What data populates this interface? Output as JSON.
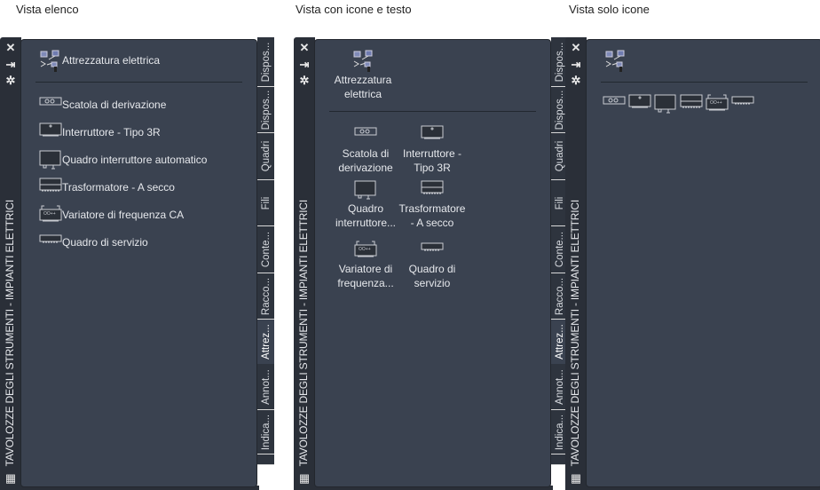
{
  "captions": [
    "Vista elenco",
    "Vista con icone e testo",
    "Vista solo icone"
  ],
  "palette_title": "TAVOLOZZE DEGLI STRUMENTI - IMPIANTI ELETTRICI",
  "controls": {
    "close": "close-icon",
    "autohide": "autohide-icon",
    "properties": "properties-icon",
    "bottom": "palette-menu-icon"
  },
  "tabs": [
    {
      "label": "Dispos..."
    },
    {
      "label": "Dispos..."
    },
    {
      "label": "Quadri"
    },
    {
      "label": "Fili"
    },
    {
      "label": "Conte..."
    },
    {
      "label": "Racco..."
    },
    {
      "label": "Attrez...",
      "active": true
    },
    {
      "label": "Annot..."
    },
    {
      "label": "Indica..."
    }
  ],
  "header": {
    "label": "Attrezzatura elettrica",
    "icon": "electrical-equipment-icon"
  },
  "items": [
    {
      "label": "Scatola di derivazione",
      "grid_label": "Scatola di derivazione",
      "icon": "junction-box-icon"
    },
    {
      "label": "Interruttore - Tipo 3R",
      "grid_label": "Interruttore - Tipo 3R",
      "icon": "switch-icon"
    },
    {
      "label": "Quadro interruttore automatico",
      "grid_label": "Quadro interruttore...",
      "icon": "breaker-panel-icon"
    },
    {
      "label": "Trasformatore - A secco",
      "grid_label": "Trasformatore - A secco",
      "icon": "transformer-icon"
    },
    {
      "label": "Variatore di frequenza CA",
      "grid_label": "Variatore di frequenza...",
      "icon": "vfd-icon"
    },
    {
      "label": "Quadro di servizio",
      "grid_label": "Quadro di servizio",
      "icon": "service-panel-icon"
    }
  ],
  "colors": {
    "content": "#3a4250",
    "bar": "#2a2f38",
    "text": "#e6e8ec"
  }
}
